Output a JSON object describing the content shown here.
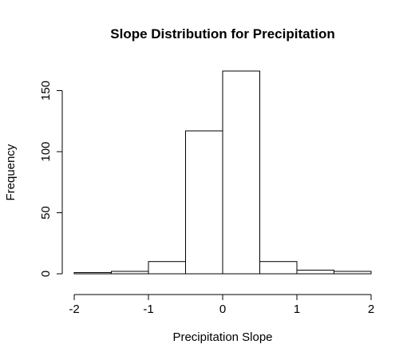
{
  "chart_data": {
    "type": "bar",
    "title": "Slope Distribution for Precipitation",
    "xlabel": "Precipitation Slope",
    "ylabel": "Frequency",
    "bins": [
      {
        "start": -2.0,
        "end": -1.5,
        "count": 1
      },
      {
        "start": -1.5,
        "end": -1.0,
        "count": 2
      },
      {
        "start": -1.0,
        "end": -0.5,
        "count": 10
      },
      {
        "start": -0.5,
        "end": 0.0,
        "count": 117
      },
      {
        "start": 0.0,
        "end": 0.5,
        "count": 166
      },
      {
        "start": 0.5,
        "end": 1.0,
        "count": 10
      },
      {
        "start": 1.0,
        "end": 1.5,
        "count": 3
      },
      {
        "start": 1.5,
        "end": 2.0,
        "count": 2
      }
    ],
    "xlim": [
      -2,
      2
    ],
    "ylim": [
      0,
      166
    ],
    "x_ticks": [
      {
        "value": -2,
        "label": "-2"
      },
      {
        "value": -1,
        "label": "-1"
      },
      {
        "value": 0,
        "label": "0"
      },
      {
        "value": 1,
        "label": "1"
      },
      {
        "value": 2,
        "label": "2"
      }
    ],
    "y_ticks": [
      {
        "value": 0,
        "label": "0"
      },
      {
        "value": 50,
        "label": "50"
      },
      {
        "value": 100,
        "label": "100"
      },
      {
        "value": 150,
        "label": "150"
      }
    ],
    "grid": false,
    "bar_fill": "#ffffff",
    "bar_stroke": "#000000"
  }
}
